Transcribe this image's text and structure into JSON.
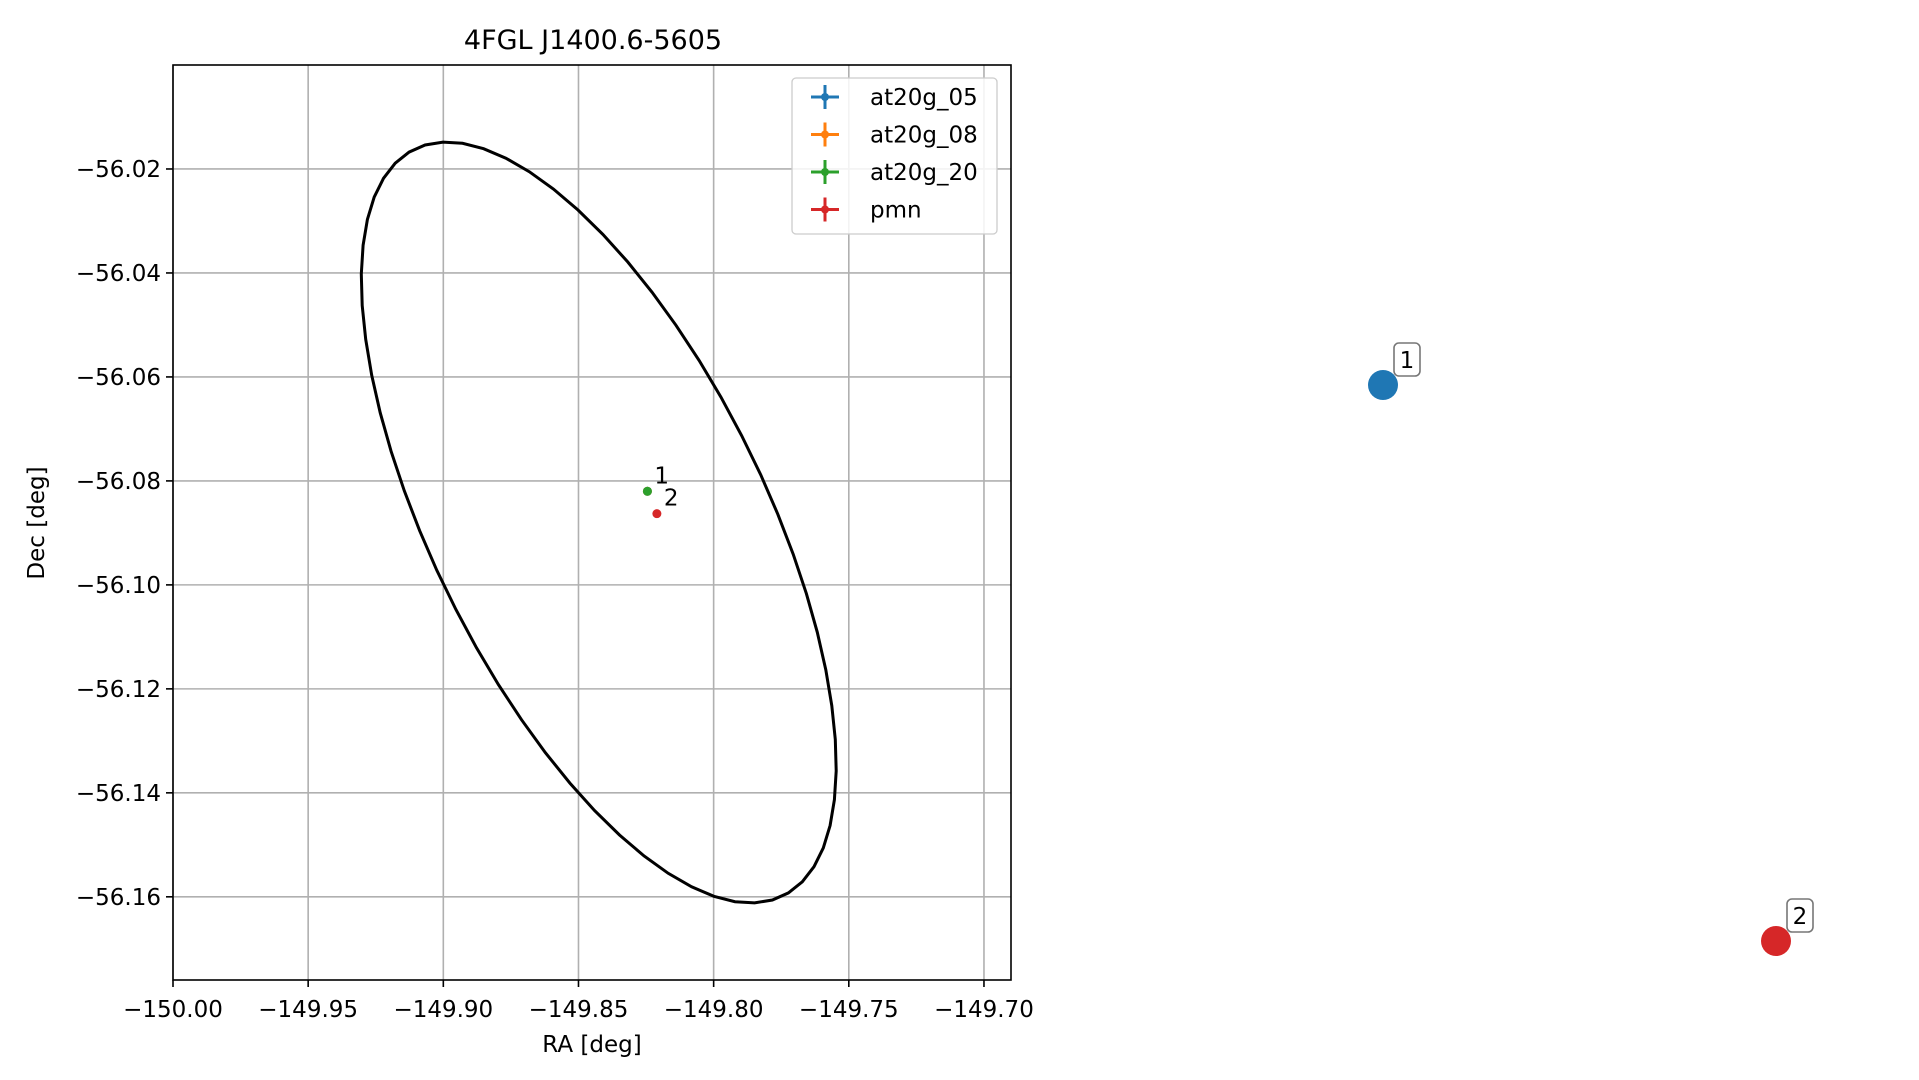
{
  "chart_data": [
    {
      "type": "scatter",
      "title": "4FGL J1400.6-5605",
      "xlabel": "RA [deg]",
      "ylabel": "Dec [deg]",
      "xlim": [
        -150.0,
        -149.69
      ],
      "ylim": [
        -56.176,
        -56.0
      ],
      "xticks": [
        -150.0,
        -149.95,
        -149.9,
        -149.85,
        -149.8,
        -149.75,
        -149.7
      ],
      "xtick_labels": [
        "−150.00",
        "−149.95",
        "−149.90",
        "−149.85",
        "−149.80",
        "−149.75",
        "−149.70"
      ],
      "yticks": [
        -56.02,
        -56.04,
        -56.06,
        -56.08,
        -56.1,
        -56.12,
        -56.14,
        -56.16
      ],
      "ytick_labels": [
        "−56.02",
        "−56.04",
        "−56.06",
        "−56.08",
        "−56.10",
        "−56.12",
        "−56.14",
        "−56.16"
      ],
      "grid": true,
      "legend_position": "top-right",
      "series": [
        {
          "name": "at20g_05",
          "color": "#1f77b4",
          "points": [
            {
              "x": -149.8245,
              "y": -56.082,
              "label": "1"
            }
          ]
        },
        {
          "name": "at20g_08",
          "color": "#ff7f0e",
          "points": [
            {
              "x": -149.8245,
              "y": -56.082,
              "label": "1"
            }
          ]
        },
        {
          "name": "at20g_20",
          "color": "#2ca02c",
          "points": [
            {
              "x": -149.8245,
              "y": -56.082,
              "label": "1"
            }
          ]
        },
        {
          "name": "pmn",
          "color": "#d62728",
          "points": [
            {
              "x": -149.821,
              "y": -56.0863,
              "label": "2"
            }
          ]
        }
      ],
      "ellipse": {
        "color": "#000000",
        "center": [
          -149.8425,
          -56.088
        ],
        "semi_axes": [
          0.104,
          0.0475
        ],
        "rotation_deg": -37
      }
    },
    {
      "type": "scatter",
      "axes": "off",
      "points": [
        {
          "label": "1",
          "color": "#1f77b4"
        },
        {
          "label": "2",
          "color": "#d62728"
        }
      ]
    }
  ]
}
